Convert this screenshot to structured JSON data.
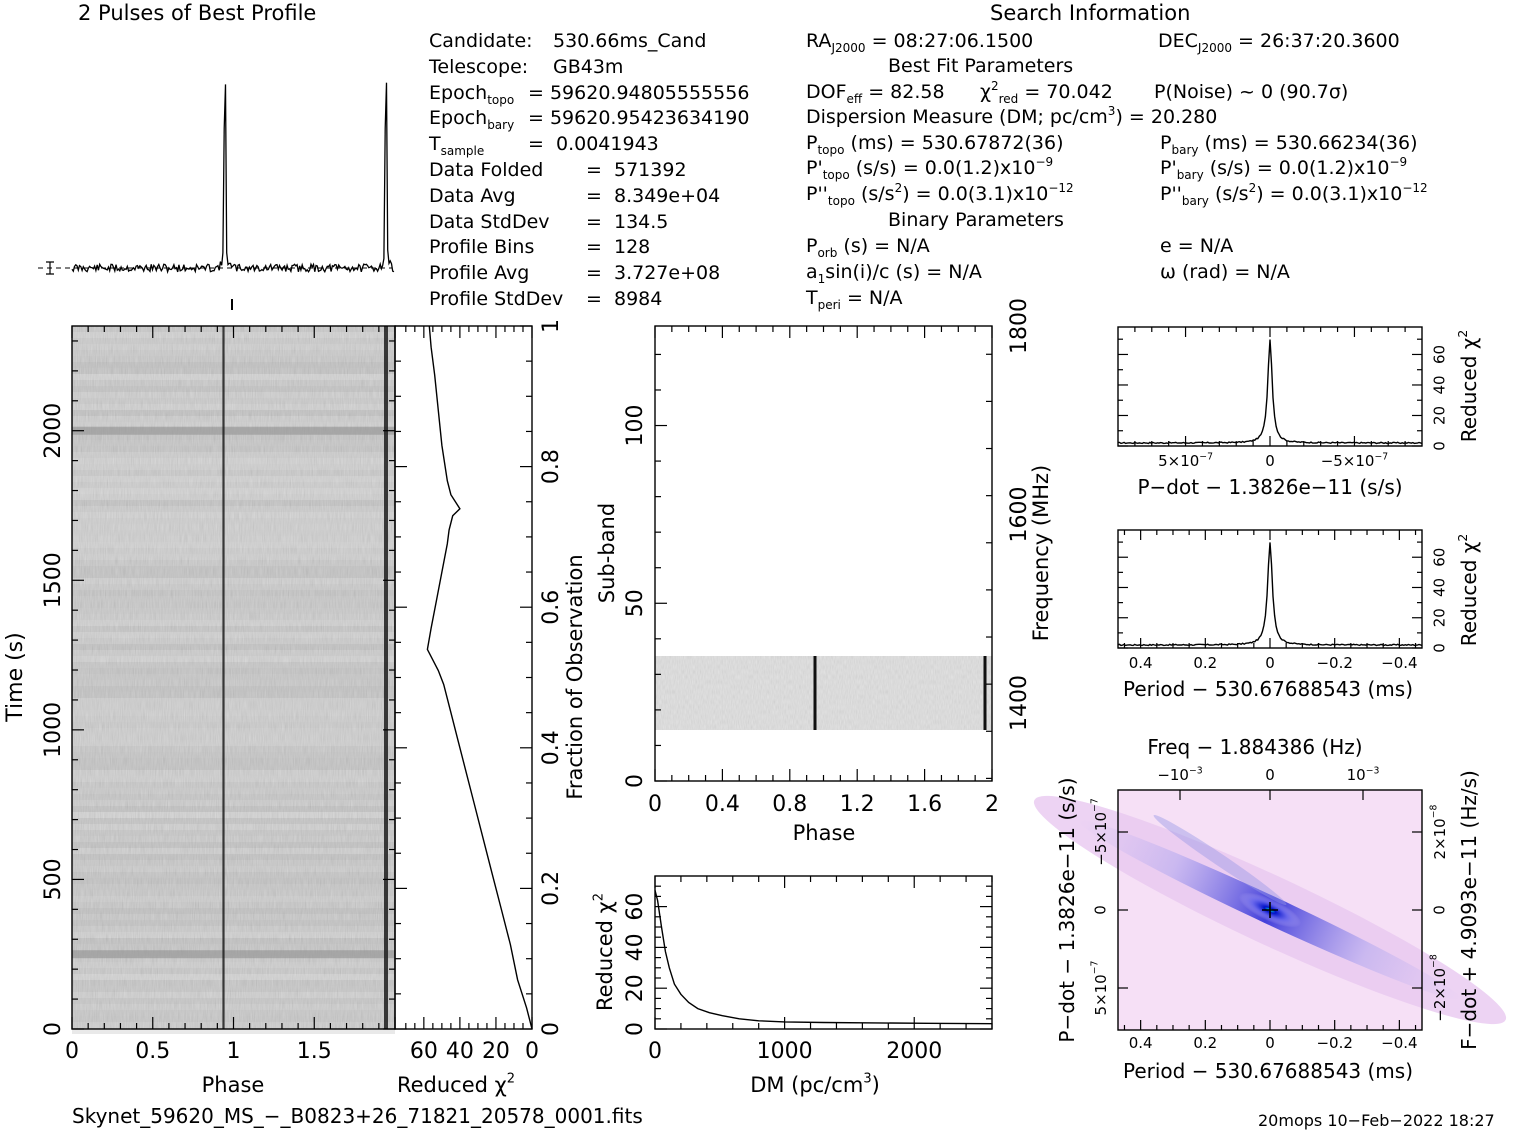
{
  "title_left": "2 Pulses of Best Profile",
  "title_right": "Search Information",
  "left_info": [
    {
      "label": "Candidate:",
      "value": "530.66ms_Cand"
    },
    {
      "label": "Telescope:",
      "value": "GB43m"
    },
    {
      "label": "Epoch",
      "sub": "topo",
      "value": "= 59620.94805555556"
    },
    {
      "label": "Epoch",
      "sub": "bary",
      "value": "= 59620.95423634190"
    },
    {
      "label": "T",
      "sub": "sample",
      "value": "=  0.0041943"
    },
    {
      "label": "Data Folded",
      "value": "=  571392"
    },
    {
      "label": "Data Avg",
      "value": "=  8.349e+04"
    },
    {
      "label": "Data StdDev",
      "value": "=  134.5"
    },
    {
      "label": "Profile Bins",
      "value": "=  128"
    },
    {
      "label": "Profile Avg",
      "value": "=  3.727e+08"
    },
    {
      "label": "Profile StdDev",
      "value": "=  8984"
    }
  ],
  "search_info": {
    "ra_label": "RA",
    "ra_sub": "J2000",
    "ra_value": "= 08:27:06.1500",
    "dec_label": "DEC",
    "dec_sub": "J2000",
    "dec_value": "= 26:37:20.3600",
    "best_fit_header": "Best Fit Parameters",
    "dof_label": "DOF",
    "dof_sub": "eff",
    "dof_value": "= 82.58",
    "chi_label": "χ",
    "chi_sup": "2",
    "chi_sub": "red",
    "chi_value": "= 70.042",
    "pnoise": "P(Noise) ~ 0   (90.7σ)",
    "dm_text_a": "Dispersion Measure (DM; pc/cm",
    "dm_sup": "3",
    "dm_text_b": ") = 20.280",
    "ptopo_label": "P",
    "ptopo_sub": "topo",
    "ptopo_value": "(ms) =  530.67872(36)",
    "pbary_label": "P",
    "pbary_sub": "bary",
    "pbary_value": "(ms) =  530.66234(36)",
    "pdtopo_label": "P'",
    "pdtopo_sub": "topo",
    "pdtopo_value": "(s/s) = 0.0(1.2)x10",
    "pdtopo_exp": "−9",
    "pdbary_label": "P'",
    "pdbary_sub": "bary",
    "pdbary_value": "(s/s) = 0.0(1.2)x10",
    "pdbary_exp": "−9",
    "pddtopo_label": "P''",
    "pddtopo_sub": "topo",
    "pddtopo_value_a": "(s/s",
    "pddtopo_sup": "2",
    "pddtopo_value_b": ") = 0.0(3.1)x10",
    "pddtopo_exp": "−12",
    "pddbary_label": "P''",
    "pddbary_sub": "bary",
    "pddbary_value_a": "(s/s",
    "pddbary_sup": "2",
    "pddbary_value_b": ") = 0.0(3.1)x10",
    "pddbary_exp": "−12",
    "binary_header": "Binary Parameters",
    "porb_label": "P",
    "porb_sub": "orb",
    "porb_value": "(s) = N/A",
    "e_text": "e = N/A",
    "a1_label": "a",
    "a1_sub": "1",
    "a1_value": "sin(i)/c (s) = N/A",
    "omega_text": "ω (rad) = N/A",
    "tperi_label": "T",
    "tperi_sub": "peri",
    "tperi_value": "= N/A"
  },
  "footer_left": "Skynet_59620_MS_−_B0823+26_71821_20578_0001.fits",
  "footer_right": "20mops 10−Feb−2022 18:27",
  "colors": {
    "ink": "#000000",
    "greyscale_bg": "#d0d0d0",
    "pdot_map_bg": "#f6dff6",
    "pdot_map_core": "#0000c8"
  },
  "chart_data": [
    {
      "type": "line",
      "name_printed": "2 Pulses of Best Profile",
      "x": "phase 0-2",
      "peaks_phase": [
        0.95,
        1.95
      ],
      "xlim": [
        0,
        2
      ]
    },
    {
      "type": "heatmap",
      "xlabel": "Phase",
      "ylabel": "Time (s)",
      "xlim": [
        0,
        2
      ],
      "ylim": [
        0,
        2350
      ],
      "xticks": [
        "0",
        "0.5",
        "1",
        "1.5"
      ],
      "yticks": [
        "0",
        "500",
        "1000",
        "1500",
        "2000"
      ],
      "pulse_phase": [
        0.95,
        1.95
      ],
      "bright_time_rows": [
        2000,
        250
      ]
    },
    {
      "type": "line",
      "xlabel": "Reduced χ",
      "xlabel_sup": "2",
      "ylabel_right": "Fraction of Observation",
      "xticks": [
        "60",
        "40",
        "20",
        "0"
      ],
      "yticks": [
        "0",
        "0.2",
        "0.4",
        "0.6",
        "0.8",
        "1"
      ],
      "xlim": [
        76,
        0
      ],
      "ylim": [
        0,
        1
      ],
      "points": [
        [
          0,
          0
        ],
        [
          3,
          0.03
        ],
        [
          8,
          0.07
        ],
        [
          12,
          0.12
        ],
        [
          17,
          0.17
        ],
        [
          22,
          0.22
        ],
        [
          27,
          0.27
        ],
        [
          32,
          0.32
        ],
        [
          37,
          0.37
        ],
        [
          41,
          0.41
        ],
        [
          45,
          0.45
        ],
        [
          49,
          0.49
        ],
        [
          52,
          0.51
        ],
        [
          58,
          0.54
        ],
        [
          56,
          0.57
        ],
        [
          53,
          0.61
        ],
        [
          50,
          0.65
        ],
        [
          47,
          0.69
        ],
        [
          46,
          0.71
        ],
        [
          44,
          0.73
        ],
        [
          40,
          0.74
        ],
        [
          45,
          0.76
        ],
        [
          47,
          0.78
        ],
        [
          50,
          0.83
        ],
        [
          52,
          0.88
        ],
        [
          54,
          0.93
        ],
        [
          56,
          0.97
        ],
        [
          57,
          1.0
        ]
      ]
    },
    {
      "type": "heatmap",
      "xlabel": "Phase",
      "ylabel": "Sub-band",
      "ylabel_right": "Frequency (MHz)",
      "xlim": [
        0,
        2
      ],
      "ylim": [
        0,
        128
      ],
      "xticks": [
        "0",
        "0.4",
        "0.8",
        "1.2",
        "1.6",
        "2"
      ],
      "yticks": [
        "0",
        "50",
        "100"
      ],
      "yticks_right": [
        "1400",
        "1600",
        "1800"
      ],
      "filled_subbands": [
        14,
        35
      ],
      "pulse_phase": [
        0.95,
        1.95
      ]
    },
    {
      "type": "line",
      "xlabel": "DM (pc/cm",
      "xlabel_sup": "3",
      "xlabel_end": ")",
      "ylabel": "Reduced χ",
      "ylabel_sup": "2",
      "xlim": [
        0,
        2600
      ],
      "ylim": [
        0,
        75
      ],
      "xticks": [
        "0",
        "1000",
        "2000"
      ],
      "yticks": [
        "0",
        "20",
        "40",
        "60"
      ],
      "points": [
        [
          0,
          68
        ],
        [
          20,
          63
        ],
        [
          50,
          50
        ],
        [
          80,
          38
        ],
        [
          110,
          30
        ],
        [
          150,
          22
        ],
        [
          200,
          17
        ],
        [
          260,
          13
        ],
        [
          330,
          10
        ],
        [
          420,
          8
        ],
        [
          520,
          6.5
        ],
        [
          650,
          5
        ],
        [
          800,
          4
        ],
        [
          1000,
          3.5
        ],
        [
          1300,
          3.2
        ],
        [
          1700,
          3.0
        ],
        [
          2100,
          2.8
        ],
        [
          2600,
          2.6
        ]
      ]
    },
    {
      "type": "line",
      "xlabel": "P−dot − 1.3826e−11 (s/s)",
      "ylabel_right": "Reduced χ",
      "ylabel_right_sup": "2",
      "xticks": [
        "5×10",
        "0",
        "−5×10"
      ],
      "xtick_exp": "−7",
      "yticks": [
        "0",
        "20",
        "40",
        "60"
      ],
      "xlim": [
        9e-07,
        -9e-07
      ],
      "ylim": [
        0,
        78
      ],
      "peak": {
        "x": 0,
        "y": 70
      }
    },
    {
      "type": "line",
      "xlabel": "Period − 530.67688543 (ms)",
      "ylabel_right": "Reduced χ",
      "ylabel_right_sup": "2",
      "xticks": [
        "0.4",
        "0.2",
        "0",
        "−0.2",
        "−0.4"
      ],
      "yticks": [
        "0",
        "20",
        "40",
        "60"
      ],
      "xlim": [
        0.47,
        -0.47
      ],
      "ylim": [
        0,
        78
      ],
      "peak": {
        "x": 0,
        "y": 70
      }
    },
    {
      "type": "heatmap",
      "top_label": "Freq − 1.884386 (Hz)",
      "top_ticks": [
        "−10",
        "0",
        "10"
      ],
      "top_tick_exp": "−3",
      "xlabel": "Period − 530.67688543 (ms)",
      "xticks": [
        "0.4",
        "0.2",
        "0",
        "−0.2",
        "−0.4"
      ],
      "ylabel": "P−dot − 1.3826e−11 (s/s)",
      "yticks": [
        "−5×10",
        "0",
        "5×10"
      ],
      "ytick_exp": "−7",
      "ylabel_right": "F−dot + 4.9093e−11 (Hz/s)",
      "yticks_right": [
        "2×10",
        "0",
        "−2×10"
      ],
      "ytick_right_exp": "−8",
      "xlim": [
        0.47,
        -0.47
      ],
      "peak": {
        "x": 0,
        "y": 0
      }
    }
  ]
}
